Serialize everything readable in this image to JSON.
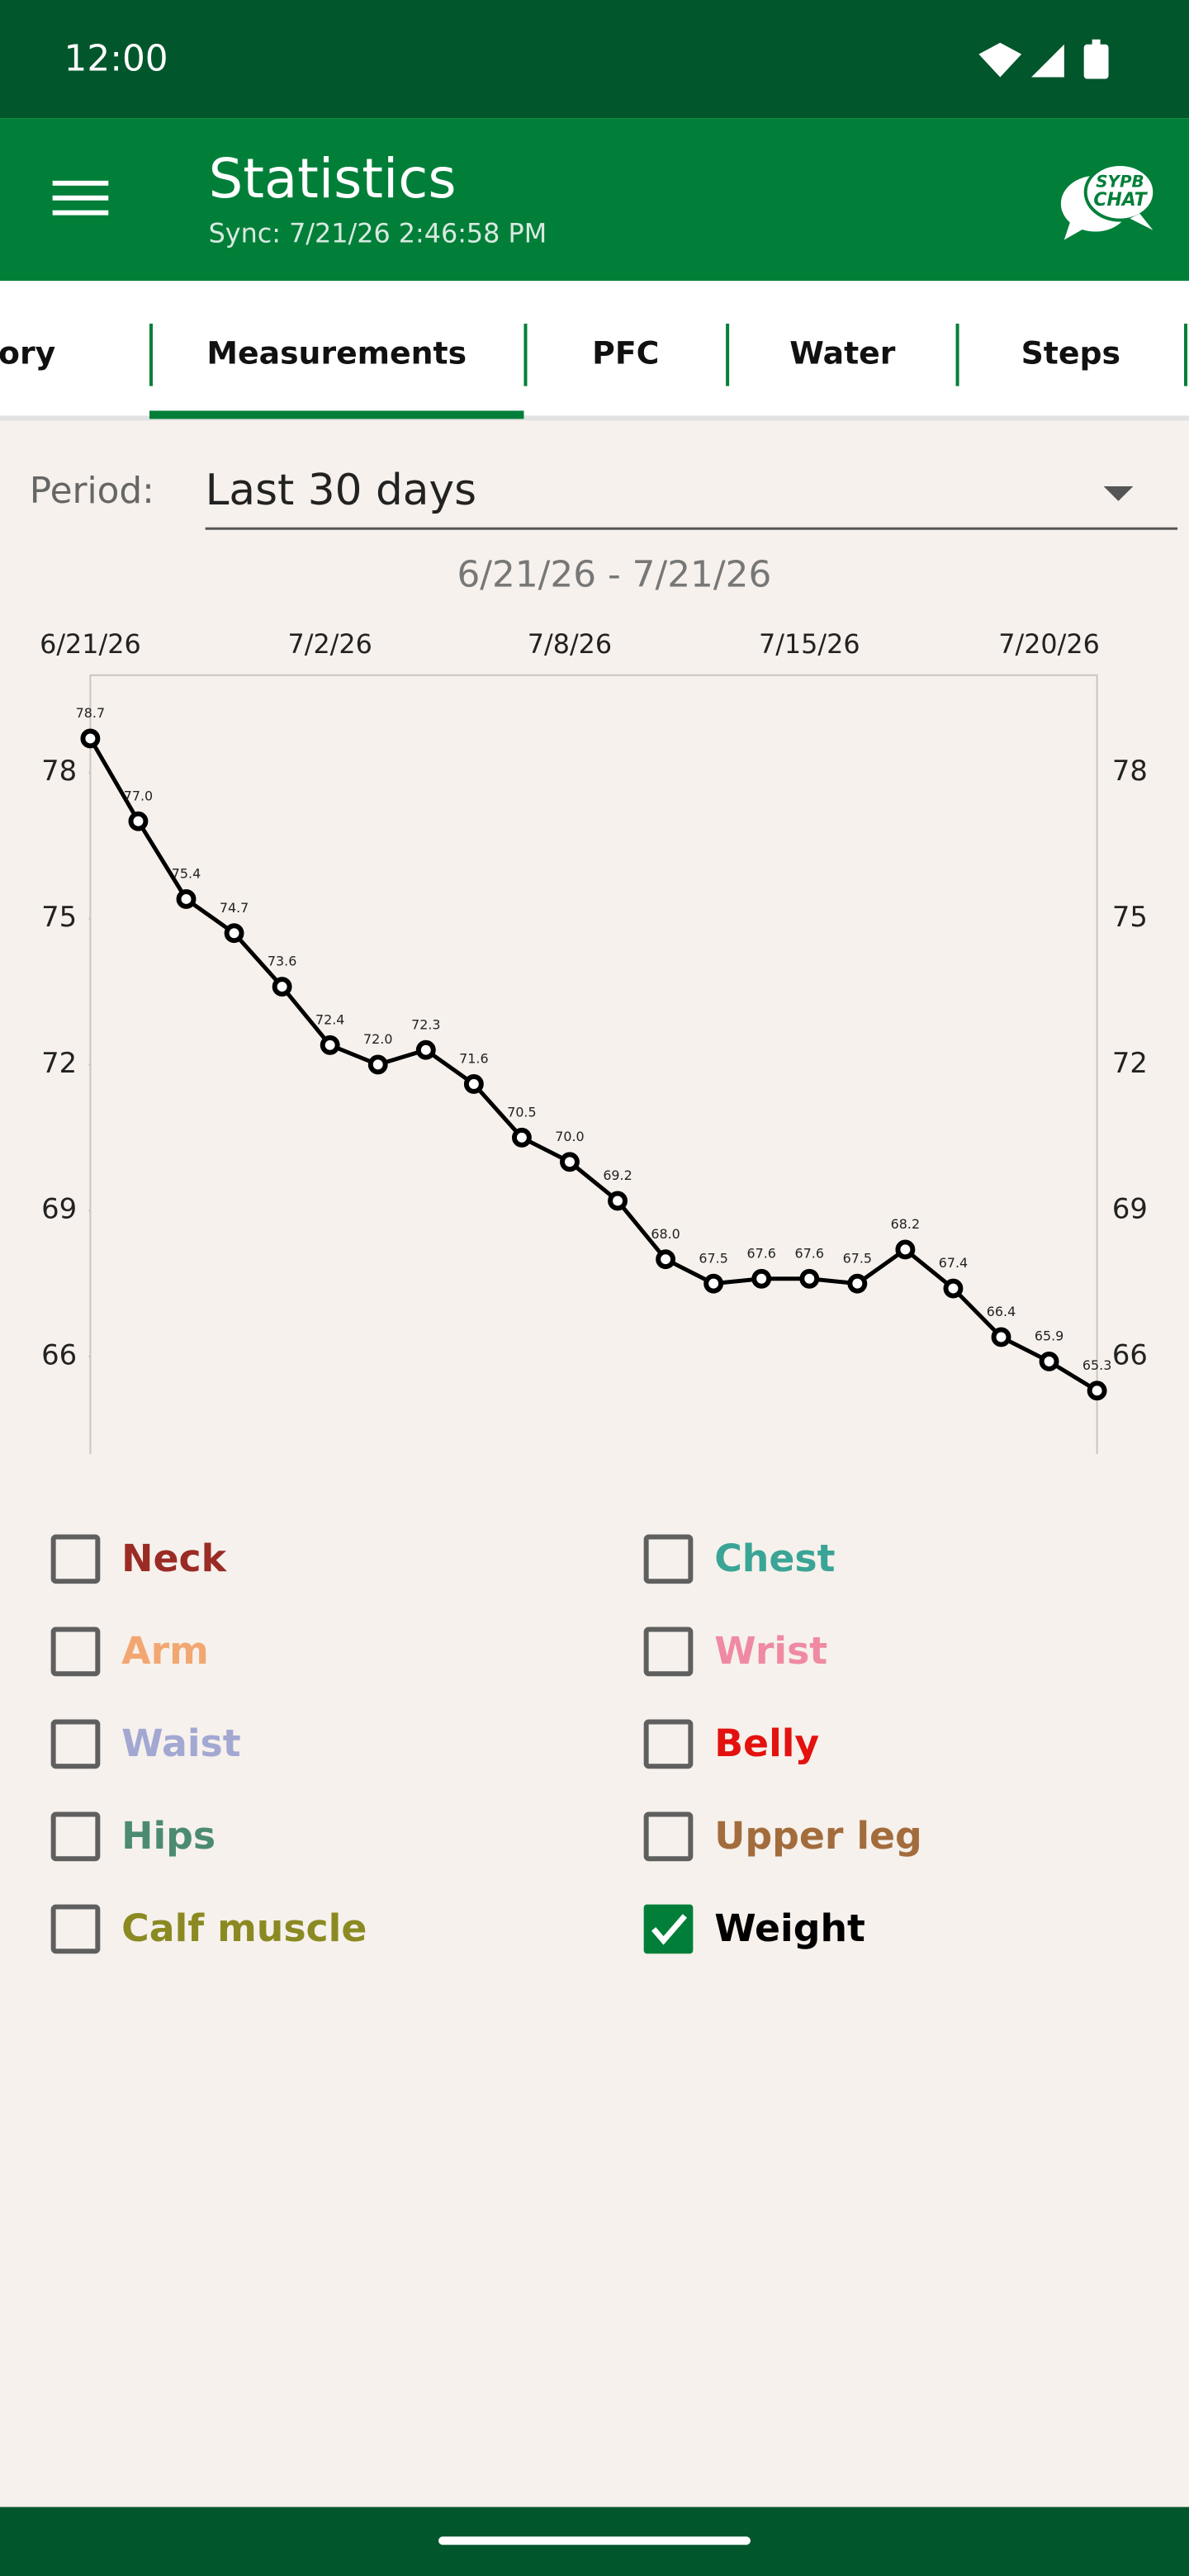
{
  "status_bar": {
    "time": "12:00"
  },
  "app_bar": {
    "title": "Statistics",
    "subtitle": "Sync: 7/21/26 2:46:58 PM",
    "chat_badge": [
      "SYPB",
      "CHAT"
    ]
  },
  "tabs": {
    "items": [
      "History",
      "Measurements",
      "PFC",
      "Water",
      "Steps"
    ],
    "selected": 1
  },
  "period": {
    "label": "Period:",
    "value": "Last 30 days"
  },
  "chart_data": {
    "type": "line",
    "title": "6/21/26 - 7/21/26",
    "categories": [
      "6/21/26",
      null,
      null,
      null,
      null,
      "7/2/26",
      null,
      null,
      null,
      null,
      "7/8/26",
      null,
      null,
      null,
      null,
      "7/15/26",
      null,
      null,
      null,
      null,
      "7/20/26",
      null
    ],
    "values": [
      78.7,
      77.0,
      75.4,
      74.7,
      73.6,
      72.4,
      72.0,
      72.3,
      71.6,
      70.5,
      70.0,
      69.2,
      68.0,
      67.5,
      67.6,
      67.6,
      67.5,
      68.2,
      67.4,
      66.4,
      65.9,
      65.3
    ],
    "value_labels": [
      "78.7",
      "77.0",
      "75.4",
      "74.7",
      "73.6",
      "72.4",
      "72.0",
      "72.3",
      "71.6",
      "70.5",
      "70.0",
      "69.2",
      "68.0",
      "67.5",
      "67.6",
      "67.6",
      "67.5",
      "68.2",
      "67.4",
      "66.4",
      "65.9",
      "65.3"
    ],
    "color": "#000000",
    "ylim": [
      64,
      80
    ],
    "yticks": [
      66,
      69,
      72,
      75,
      78
    ]
  },
  "checkboxes": [
    {
      "label": "Neck",
      "color": "#9b2b25",
      "checked": false
    },
    {
      "label": "Chest",
      "color": "#3aa596",
      "checked": false
    },
    {
      "label": "Arm",
      "color": "#f2a772",
      "checked": false
    },
    {
      "label": "Wrist",
      "color": "#ef8aa2",
      "checked": false
    },
    {
      "label": "Waist",
      "color": "#a3a8d2",
      "checked": false
    },
    {
      "label": "Belly",
      "color": "#e3120f",
      "checked": false
    },
    {
      "label": "Hips",
      "color": "#4c8b72",
      "checked": false
    },
    {
      "label": "Upper leg",
      "color": "#a36c3c",
      "checked": false
    },
    {
      "label": "Calf muscle",
      "color": "#8b8a22",
      "checked": false
    },
    {
      "label": "Weight",
      "color": "#000000",
      "checked": true
    }
  ]
}
